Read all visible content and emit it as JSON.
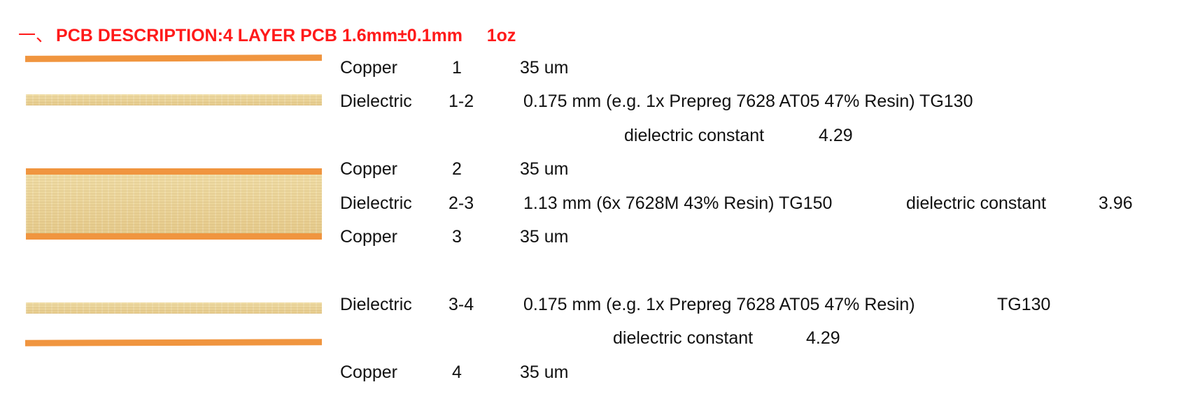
{
  "title": {
    "prefix": "一、",
    "text": "PCB DESCRIPTION:4 LAYER PCB 1.6mm±0.1mm     1oz"
  },
  "colors": {
    "title": "#ff1a1a",
    "copper": "#f0953f",
    "dielectric": "#ecd59a",
    "text": "#111111"
  },
  "stack": {
    "copper1": {
      "name": "Copper",
      "index": "1",
      "spec": "35 um"
    },
    "diel12": {
      "name": "Dielectric",
      "index": "1-2",
      "spec": "0.175 mm (e.g. 1x Prepreg 7628 AT05 47% Resin) TG130",
      "dk_label": "dielectric constant",
      "dk_value": "4.29"
    },
    "copper2": {
      "name": "Copper",
      "index": "2",
      "spec": "35 um"
    },
    "diel23": {
      "name": "Dielectric",
      "index": "2-3",
      "spec": "1.13 mm (6x 7628M 43% Resin) TG150",
      "dk_label": "dielectric constant",
      "dk_value": "3.96"
    },
    "copper3": {
      "name": "Copper",
      "index": "3",
      "spec": "35 um"
    },
    "diel34": {
      "name": "Dielectric",
      "index": "3-4",
      "spec": "0.175 mm (e.g. 1x Prepreg 7628 AT05 47% Resin)",
      "tg": "TG130",
      "dk_label": "dielectric constant",
      "dk_value": "4.29"
    },
    "copper4": {
      "name": "Copper",
      "index": "4",
      "spec": "35 um"
    }
  }
}
